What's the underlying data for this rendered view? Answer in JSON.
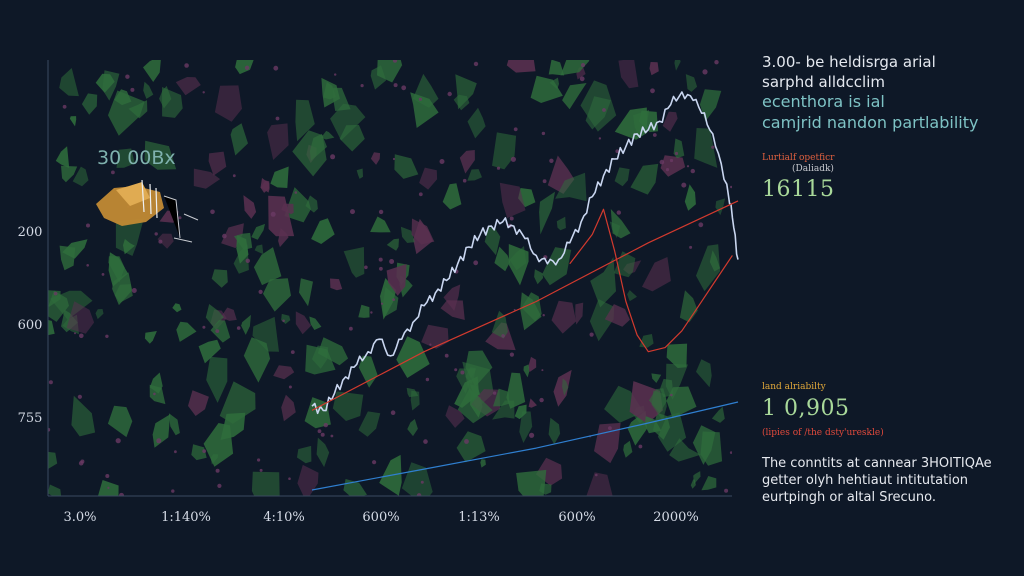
{
  "colors": {
    "background": "#0e1827",
    "camo_green": "#2f6d3c",
    "camo_pink": "#5a3050",
    "price_line": "#c9d6f0",
    "red_line": "#d23a2e",
    "blue_line": "#2f7fd0",
    "teal_text": "#7ec3c5",
    "gold_label": "#e1a83a"
  },
  "overlay_text": "30 00Bx",
  "header": {
    "line1": "3.00- be heldisrga arial",
    "line2": "sarphd alldcclim",
    "line3": "ecenthora is ial",
    "line4": "camjrid nandon partlability"
  },
  "stat1": {
    "label": "Lurtialf opetficr",
    "sublabel": "(Daliadk)",
    "value": "16115"
  },
  "stat2": {
    "label": "land alriabilty",
    "value": "1 0,905",
    "sublabel": "(lipies of /the dsty'ureskle)"
  },
  "note": {
    "line1": "The conntits at cannear 3HOITIQAe",
    "line2": "getter olyh hehtiaut intitutation",
    "line3": "eurtpingh or altal Srecuno."
  },
  "chart_data": {
    "type": "line",
    "xlabel": "",
    "ylabel": "",
    "x_tick_labels": [
      "3.0%",
      "1:140%",
      "4:10%",
      "600%",
      "1:13%",
      "600%",
      "2000%"
    ],
    "y_tick_labels": [
      "200",
      "600",
      "755"
    ],
    "grid": false,
    "legend": "none",
    "series": [
      {
        "color": "#c9d6f0",
        "values": [
          [
            0.0,
            0.2
          ],
          [
            0.02,
            0.19
          ],
          [
            0.04,
            0.23
          ],
          [
            0.06,
            0.27
          ],
          [
            0.08,
            0.3
          ],
          [
            0.1,
            0.33
          ],
          [
            0.12,
            0.36
          ],
          [
            0.14,
            0.32
          ],
          [
            0.16,
            0.36
          ],
          [
            0.18,
            0.4
          ],
          [
            0.2,
            0.44
          ],
          [
            0.22,
            0.47
          ],
          [
            0.24,
            0.5
          ],
          [
            0.26,
            0.54
          ],
          [
            0.28,
            0.58
          ],
          [
            0.3,
            0.61
          ],
          [
            0.32,
            0.63
          ],
          [
            0.34,
            0.64
          ],
          [
            0.36,
            0.63
          ],
          [
            0.38,
            0.6
          ],
          [
            0.4,
            0.56
          ],
          [
            0.42,
            0.54
          ],
          [
            0.44,
            0.55
          ],
          [
            0.46,
            0.59
          ],
          [
            0.48,
            0.64
          ],
          [
            0.5,
            0.7
          ],
          [
            0.52,
            0.75
          ],
          [
            0.54,
            0.79
          ],
          [
            0.56,
            0.82
          ],
          [
            0.58,
            0.85
          ],
          [
            0.6,
            0.86
          ],
          [
            0.62,
            0.88
          ],
          [
            0.64,
            0.92
          ],
          [
            0.66,
            0.95
          ],
          [
            0.68,
            0.93
          ],
          [
            0.7,
            0.9
          ],
          [
            0.72,
            0.82
          ],
          [
            0.74,
            0.73
          ],
          [
            0.75,
            0.65
          ],
          [
            0.76,
            0.55
          ]
        ]
      },
      {
        "color": "#d23a2e",
        "values": [
          [
            0.0,
            0.19
          ],
          [
            0.2,
            0.33
          ],
          [
            0.4,
            0.45
          ],
          [
            0.6,
            0.59
          ],
          [
            0.76,
            0.69
          ]
        ]
      },
      {
        "color": "#d23a2e",
        "values": [
          [
            0.46,
            0.54
          ],
          [
            0.5,
            0.61
          ],
          [
            0.52,
            0.67
          ],
          [
            0.54,
            0.57
          ],
          [
            0.56,
            0.45
          ],
          [
            0.58,
            0.37
          ],
          [
            0.6,
            0.33
          ],
          [
            0.63,
            0.34
          ],
          [
            0.66,
            0.38
          ],
          [
            0.69,
            0.44
          ],
          [
            0.72,
            0.5
          ],
          [
            0.75,
            0.56
          ]
        ]
      },
      {
        "color": "#2f7fd0",
        "values": [
          [
            0.0,
            0.0
          ],
          [
            0.2,
            0.05
          ],
          [
            0.4,
            0.1
          ],
          [
            0.6,
            0.16
          ],
          [
            0.76,
            0.21
          ]
        ]
      }
    ]
  }
}
